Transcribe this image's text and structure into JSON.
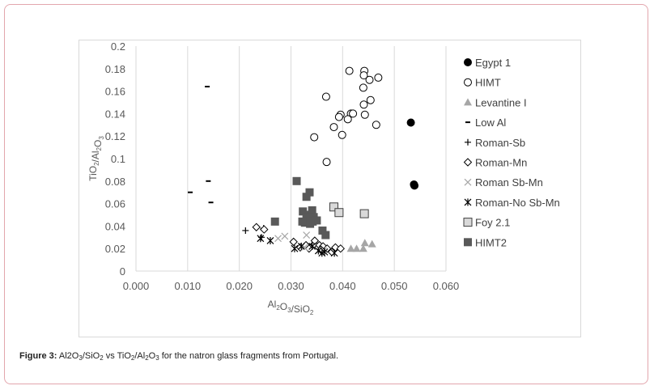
{
  "caption": {
    "label": "Figure 3:",
    "parts": [
      "Al2O",
      "3",
      "/SiO",
      "2",
      " vs TiO",
      "2",
      "/Al",
      "2",
      "O",
      "3",
      " for the natron glass fragments from Portugal."
    ]
  },
  "chart_data": {
    "type": "scatter",
    "xlabel": "Al2O3/SiO2",
    "ylabel": "TiO2/Al2O3",
    "xlim": [
      0,
      0.06
    ],
    "ylim": [
      0,
      0.2
    ],
    "x_ticks": [
      "0.000",
      "0.010",
      "0.020",
      "0.030",
      "0.040",
      "0.050",
      "0.060"
    ],
    "y_ticks": [
      "0",
      "0.02",
      "0.04",
      "0.06",
      "0.08",
      "0.1",
      "0.12",
      "0.14",
      "0.16",
      "0.18",
      "0.2"
    ],
    "grid": "vertical",
    "legend": "right",
    "series": [
      {
        "name": "Egypt 1",
        "marker": "filled-circle",
        "color": "#000000",
        "points": [
          [
            0.0532,
            0.132
          ],
          [
            0.0538,
            0.077
          ],
          [
            0.0539,
            0.076
          ]
        ]
      },
      {
        "name": "HIMT",
        "marker": "open-circle",
        "color": "#000000",
        "points": [
          [
            0.0413,
            0.178
          ],
          [
            0.0442,
            0.178
          ],
          [
            0.0441,
            0.174
          ],
          [
            0.0469,
            0.172
          ],
          [
            0.0452,
            0.17
          ],
          [
            0.044,
            0.163
          ],
          [
            0.0368,
            0.155
          ],
          [
            0.0454,
            0.152
          ],
          [
            0.0441,
            0.148
          ],
          [
            0.0396,
            0.139
          ],
          [
            0.0416,
            0.14
          ],
          [
            0.042,
            0.14
          ],
          [
            0.0443,
            0.139
          ],
          [
            0.041,
            0.135
          ],
          [
            0.0393,
            0.137
          ],
          [
            0.0383,
            0.128
          ],
          [
            0.0465,
            0.13
          ],
          [
            0.0399,
            0.121
          ],
          [
            0.0345,
            0.119
          ],
          [
            0.0369,
            0.097
          ]
        ]
      },
      {
        "name": "Levantine I",
        "marker": "triangle",
        "color": "#a6a6a6",
        "points": [
          [
            0.0416,
            0.02
          ],
          [
            0.0427,
            0.02
          ],
          [
            0.044,
            0.02
          ],
          [
            0.0443,
            0.025
          ],
          [
            0.0457,
            0.024
          ]
        ]
      },
      {
        "name": "Low Al",
        "marker": "dash",
        "color": "#000000",
        "points": [
          [
            0.0138,
            0.164
          ],
          [
            0.014,
            0.08
          ],
          [
            0.0105,
            0.07
          ],
          [
            0.0145,
            0.061
          ]
        ]
      },
      {
        "name": "Roman-Sb",
        "marker": "plus",
        "color": "#000000",
        "points": [
          [
            0.0212,
            0.036
          ],
          [
            0.0247,
            0.038
          ],
          [
            0.0243,
            0.03
          ]
        ]
      },
      {
        "name": "Roman-Mn",
        "marker": "open-diamond",
        "color": "#000000",
        "points": [
          [
            0.0233,
            0.039
          ],
          [
            0.0248,
            0.037
          ],
          [
            0.0305,
            0.026
          ],
          [
            0.0318,
            0.021
          ],
          [
            0.0329,
            0.023
          ],
          [
            0.0335,
            0.02
          ],
          [
            0.0345,
            0.024
          ],
          [
            0.0355,
            0.023
          ],
          [
            0.0362,
            0.022
          ],
          [
            0.037,
            0.02
          ],
          [
            0.0379,
            0.017
          ],
          [
            0.0386,
            0.021
          ],
          [
            0.0396,
            0.02
          ],
          [
            0.0346,
            0.027
          ],
          [
            0.0358,
            0.019
          ]
        ]
      },
      {
        "name": "Roman Sb-Mn",
        "marker": "x",
        "color": "#a6a6a6",
        "points": [
          [
            0.0275,
            0.029
          ],
          [
            0.0288,
            0.031
          ],
          [
            0.033,
            0.032
          ],
          [
            0.0326,
            0.021
          ],
          [
            0.0363,
            0.018
          ]
        ]
      },
      {
        "name": "Roman-No Sb-Mn",
        "marker": "asterisk",
        "color": "#000000",
        "points": [
          [
            0.0241,
            0.029
          ],
          [
            0.026,
            0.027
          ],
          [
            0.0307,
            0.02
          ],
          [
            0.032,
            0.022
          ],
          [
            0.0341,
            0.022
          ],
          [
            0.0353,
            0.018
          ],
          [
            0.036,
            0.016
          ],
          [
            0.0365,
            0.017
          ],
          [
            0.0384,
            0.016
          ]
        ]
      },
      {
        "name": "Foy 2.1",
        "marker": "open-square",
        "color": "#000000",
        "points": [
          [
            0.0383,
            0.057
          ],
          [
            0.0393,
            0.052
          ],
          [
            0.0442,
            0.051
          ]
        ]
      },
      {
        "name": "HIMT2",
        "marker": "filled-square",
        "color": "#595959",
        "points": [
          [
            0.0311,
            0.08
          ],
          [
            0.0336,
            0.07
          ],
          [
            0.033,
            0.066
          ],
          [
            0.0269,
            0.044
          ],
          [
            0.0323,
            0.053
          ],
          [
            0.0334,
            0.05
          ],
          [
            0.0341,
            0.054
          ],
          [
            0.0344,
            0.048
          ],
          [
            0.033,
            0.048
          ],
          [
            0.0342,
            0.044
          ],
          [
            0.035,
            0.045
          ],
          [
            0.0327,
            0.043
          ],
          [
            0.0337,
            0.042
          ],
          [
            0.0322,
            0.044
          ],
          [
            0.0361,
            0.036
          ],
          [
            0.0367,
            0.032
          ]
        ]
      }
    ]
  }
}
